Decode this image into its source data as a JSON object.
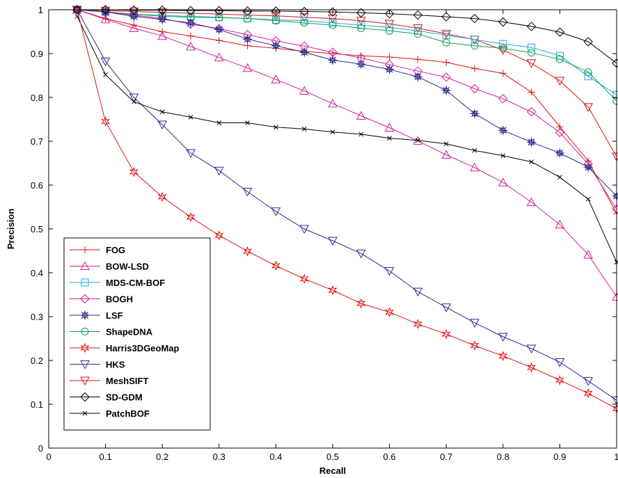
{
  "chart_data": {
    "type": "line",
    "xlabel": "Recall",
    "ylabel": "Precision",
    "xlim": [
      0,
      1
    ],
    "ylim": [
      0,
      1
    ],
    "xticks": [
      "0",
      "0.1",
      "0.2",
      "0.3",
      "0.4",
      "0.5",
      "0.6",
      "0.7",
      "0.8",
      "0.9",
      "1"
    ],
    "yticks": [
      "0",
      "0.1",
      "0.2",
      "0.3",
      "0.4",
      "0.5",
      "0.6",
      "0.7",
      "0.8",
      "0.9",
      "1"
    ],
    "grid": false,
    "legend_position": "bottom-left",
    "x": [
      0.05,
      0.1,
      0.15,
      0.2,
      0.25,
      0.3,
      0.35,
      0.4,
      0.45,
      0.5,
      0.55,
      0.6,
      0.65,
      0.7,
      0.75,
      0.8,
      0.85,
      0.9,
      0.95,
      1.0
    ],
    "series": [
      {
        "name": "FOG",
        "color": "#e01010",
        "marker": "plus",
        "values": [
          1.0,
          0.98,
          0.965,
          0.95,
          0.94,
          0.93,
          0.918,
          0.912,
          0.905,
          0.9,
          0.895,
          0.892,
          0.887,
          0.88,
          0.866,
          0.855,
          0.812,
          0.733,
          0.655,
          0.535
        ]
      },
      {
        "name": "BOW-LSD",
        "color": "#d0209a",
        "marker": "triangle-up",
        "values": [
          1.0,
          0.978,
          0.958,
          0.94,
          0.916,
          0.891,
          0.867,
          0.841,
          0.815,
          0.786,
          0.758,
          0.731,
          0.701,
          0.669,
          0.64,
          0.606,
          0.561,
          0.51,
          0.441,
          0.345
        ]
      },
      {
        "name": "MDS-CM-BOF",
        "color": "#18a8dc",
        "marker": "square",
        "values": [
          1.0,
          0.995,
          0.99,
          0.987,
          0.985,
          0.983,
          0.98,
          0.977,
          0.975,
          0.97,
          0.965,
          0.96,
          0.952,
          0.942,
          0.932,
          0.922,
          0.914,
          0.895,
          0.848,
          0.806
        ]
      },
      {
        "name": "BOGH",
        "color": "#d0209a",
        "marker": "diamond",
        "values": [
          1.0,
          0.995,
          0.988,
          0.98,
          0.967,
          0.957,
          0.943,
          0.929,
          0.917,
          0.903,
          0.89,
          0.875,
          0.86,
          0.846,
          0.82,
          0.797,
          0.767,
          0.72,
          0.648,
          0.545
        ]
      },
      {
        "name": "LSF",
        "color": "#2a2a8a",
        "marker": "star-plus",
        "values": [
          1.0,
          0.995,
          0.985,
          0.978,
          0.97,
          0.955,
          0.933,
          0.918,
          0.903,
          0.885,
          0.876,
          0.864,
          0.847,
          0.816,
          0.763,
          0.725,
          0.698,
          0.673,
          0.641,
          0.575
        ]
      },
      {
        "name": "ShapeDNA",
        "color": "#10a050",
        "marker": "circle",
        "values": [
          1.0,
          0.995,
          0.99,
          0.985,
          0.983,
          0.982,
          0.98,
          0.975,
          0.97,
          0.965,
          0.958,
          0.952,
          0.945,
          0.925,
          0.918,
          0.912,
          0.902,
          0.887,
          0.858,
          0.792
        ]
      },
      {
        "name": "Harris3DGeoMap",
        "color": "#e01010",
        "marker": "hexstar",
        "values": [
          1.0,
          0.745,
          0.63,
          0.573,
          0.527,
          0.485,
          0.449,
          0.416,
          0.386,
          0.36,
          0.33,
          0.31,
          0.283,
          0.26,
          0.234,
          0.21,
          0.184,
          0.155,
          0.125,
          0.09
        ]
      },
      {
        "name": "HKS",
        "color": "#2a2a8a",
        "marker": "triangle-down",
        "values": [
          1.0,
          0.882,
          0.8,
          0.738,
          0.673,
          0.633,
          0.585,
          0.54,
          0.5,
          0.473,
          0.444,
          0.404,
          0.357,
          0.321,
          0.286,
          0.254,
          0.227,
          0.196,
          0.153,
          0.109
        ]
      },
      {
        "name": "MeshSIFT",
        "color": "#e01010",
        "marker": "triangle-down",
        "values": [
          1.0,
          0.998,
          0.996,
          0.994,
          0.992,
          0.99,
          0.988,
          0.986,
          0.983,
          0.98,
          0.975,
          0.968,
          0.958,
          0.945,
          0.932,
          0.908,
          0.878,
          0.838,
          0.778,
          0.665
        ]
      },
      {
        "name": "SD-GDM",
        "color": "#000000",
        "marker": "diamond",
        "values": [
          1.0,
          1.0,
          0.999,
          0.999,
          0.998,
          0.998,
          0.997,
          0.997,
          0.996,
          0.995,
          0.993,
          0.991,
          0.988,
          0.984,
          0.98,
          0.972,
          0.962,
          0.949,
          0.927,
          0.878
        ]
      },
      {
        "name": "PatchBOF",
        "color": "#000000",
        "marker": "x",
        "values": [
          0.985,
          0.852,
          0.79,
          0.767,
          0.755,
          0.742,
          0.742,
          0.732,
          0.728,
          0.721,
          0.716,
          0.707,
          0.702,
          0.694,
          0.679,
          0.667,
          0.653,
          0.618,
          0.568,
          0.424
        ]
      }
    ]
  }
}
